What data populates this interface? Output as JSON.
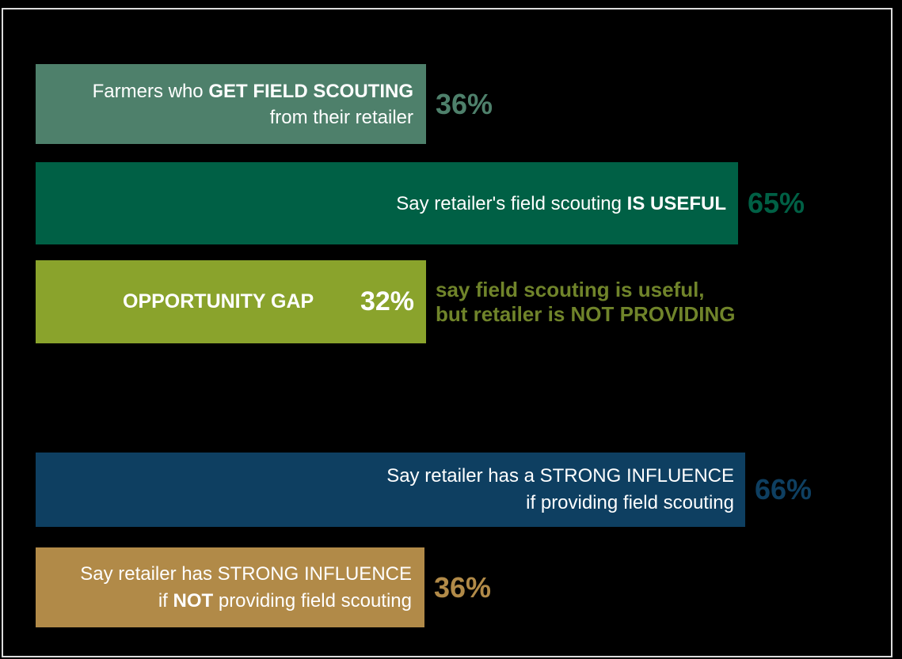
{
  "canvas": {
    "background_color": "#000000",
    "frame_border_color": "#dcdcdc"
  },
  "colors": {
    "sage": "#4e806b",
    "dark_green": "#006045",
    "olive": "#8aa32c",
    "olive_note_text": "#70842a",
    "navy": "#0e3f61",
    "tan": "#b18a48",
    "bar_text": "#ffffff"
  },
  "chart_data": {
    "type": "bar",
    "orientation": "horizontal",
    "unit": "%",
    "title": "",
    "legend": false,
    "grid": false,
    "bars": [
      {
        "label": "Farmers who GET FIELD SCOUTING from their retailer",
        "value": 36,
        "value_label": "36%",
        "color": "#4e806b"
      },
      {
        "label": "Say retailer's field scouting IS USEFUL",
        "value": 65,
        "value_label": "65%",
        "color": "#006045"
      },
      {
        "label": "OPPORTUNITY GAP",
        "value": 32,
        "value_label": "32%",
        "color": "#8aa32c",
        "annotation": "say field scouting is useful, but retailer is NOT PROVIDING"
      },
      {
        "label": "Say retailer has a STRONG INFLUENCE if providing field scouting",
        "value": 66,
        "value_label": "66%",
        "color": "#0e3f61"
      },
      {
        "label": "Say retailer has STRONG INFLUENCE if NOT providing field scouting",
        "value": 36,
        "value_label": "36%",
        "color": "#b18a48"
      }
    ]
  },
  "content": {
    "bar1": {
      "line1_regular": "Farmers who ",
      "line1_bold": "GET FIELD SCOUTING",
      "line2": "from their retailer",
      "value_label": "36%"
    },
    "bar2": {
      "line1_regular": "Say retailer's field scouting ",
      "line1_bold": "IS USEFUL",
      "value_label": "65%"
    },
    "bar3": {
      "title": "OPPORTUNITY GAP",
      "value_label": "32%",
      "note_line1": "say field scouting is useful,",
      "note_line2": "but retailer is NOT PROVIDING"
    },
    "bar4": {
      "line1": "Say retailer has a STRONG INFLUENCE",
      "line2": "if providing field scouting",
      "value_label": "66%"
    },
    "bar5": {
      "line1": "Say retailer has STRONG INFLUENCE",
      "line2_pre": "if ",
      "line2_bold": "NOT",
      "line2_post": " providing field scouting",
      "value_label": "36%"
    }
  }
}
